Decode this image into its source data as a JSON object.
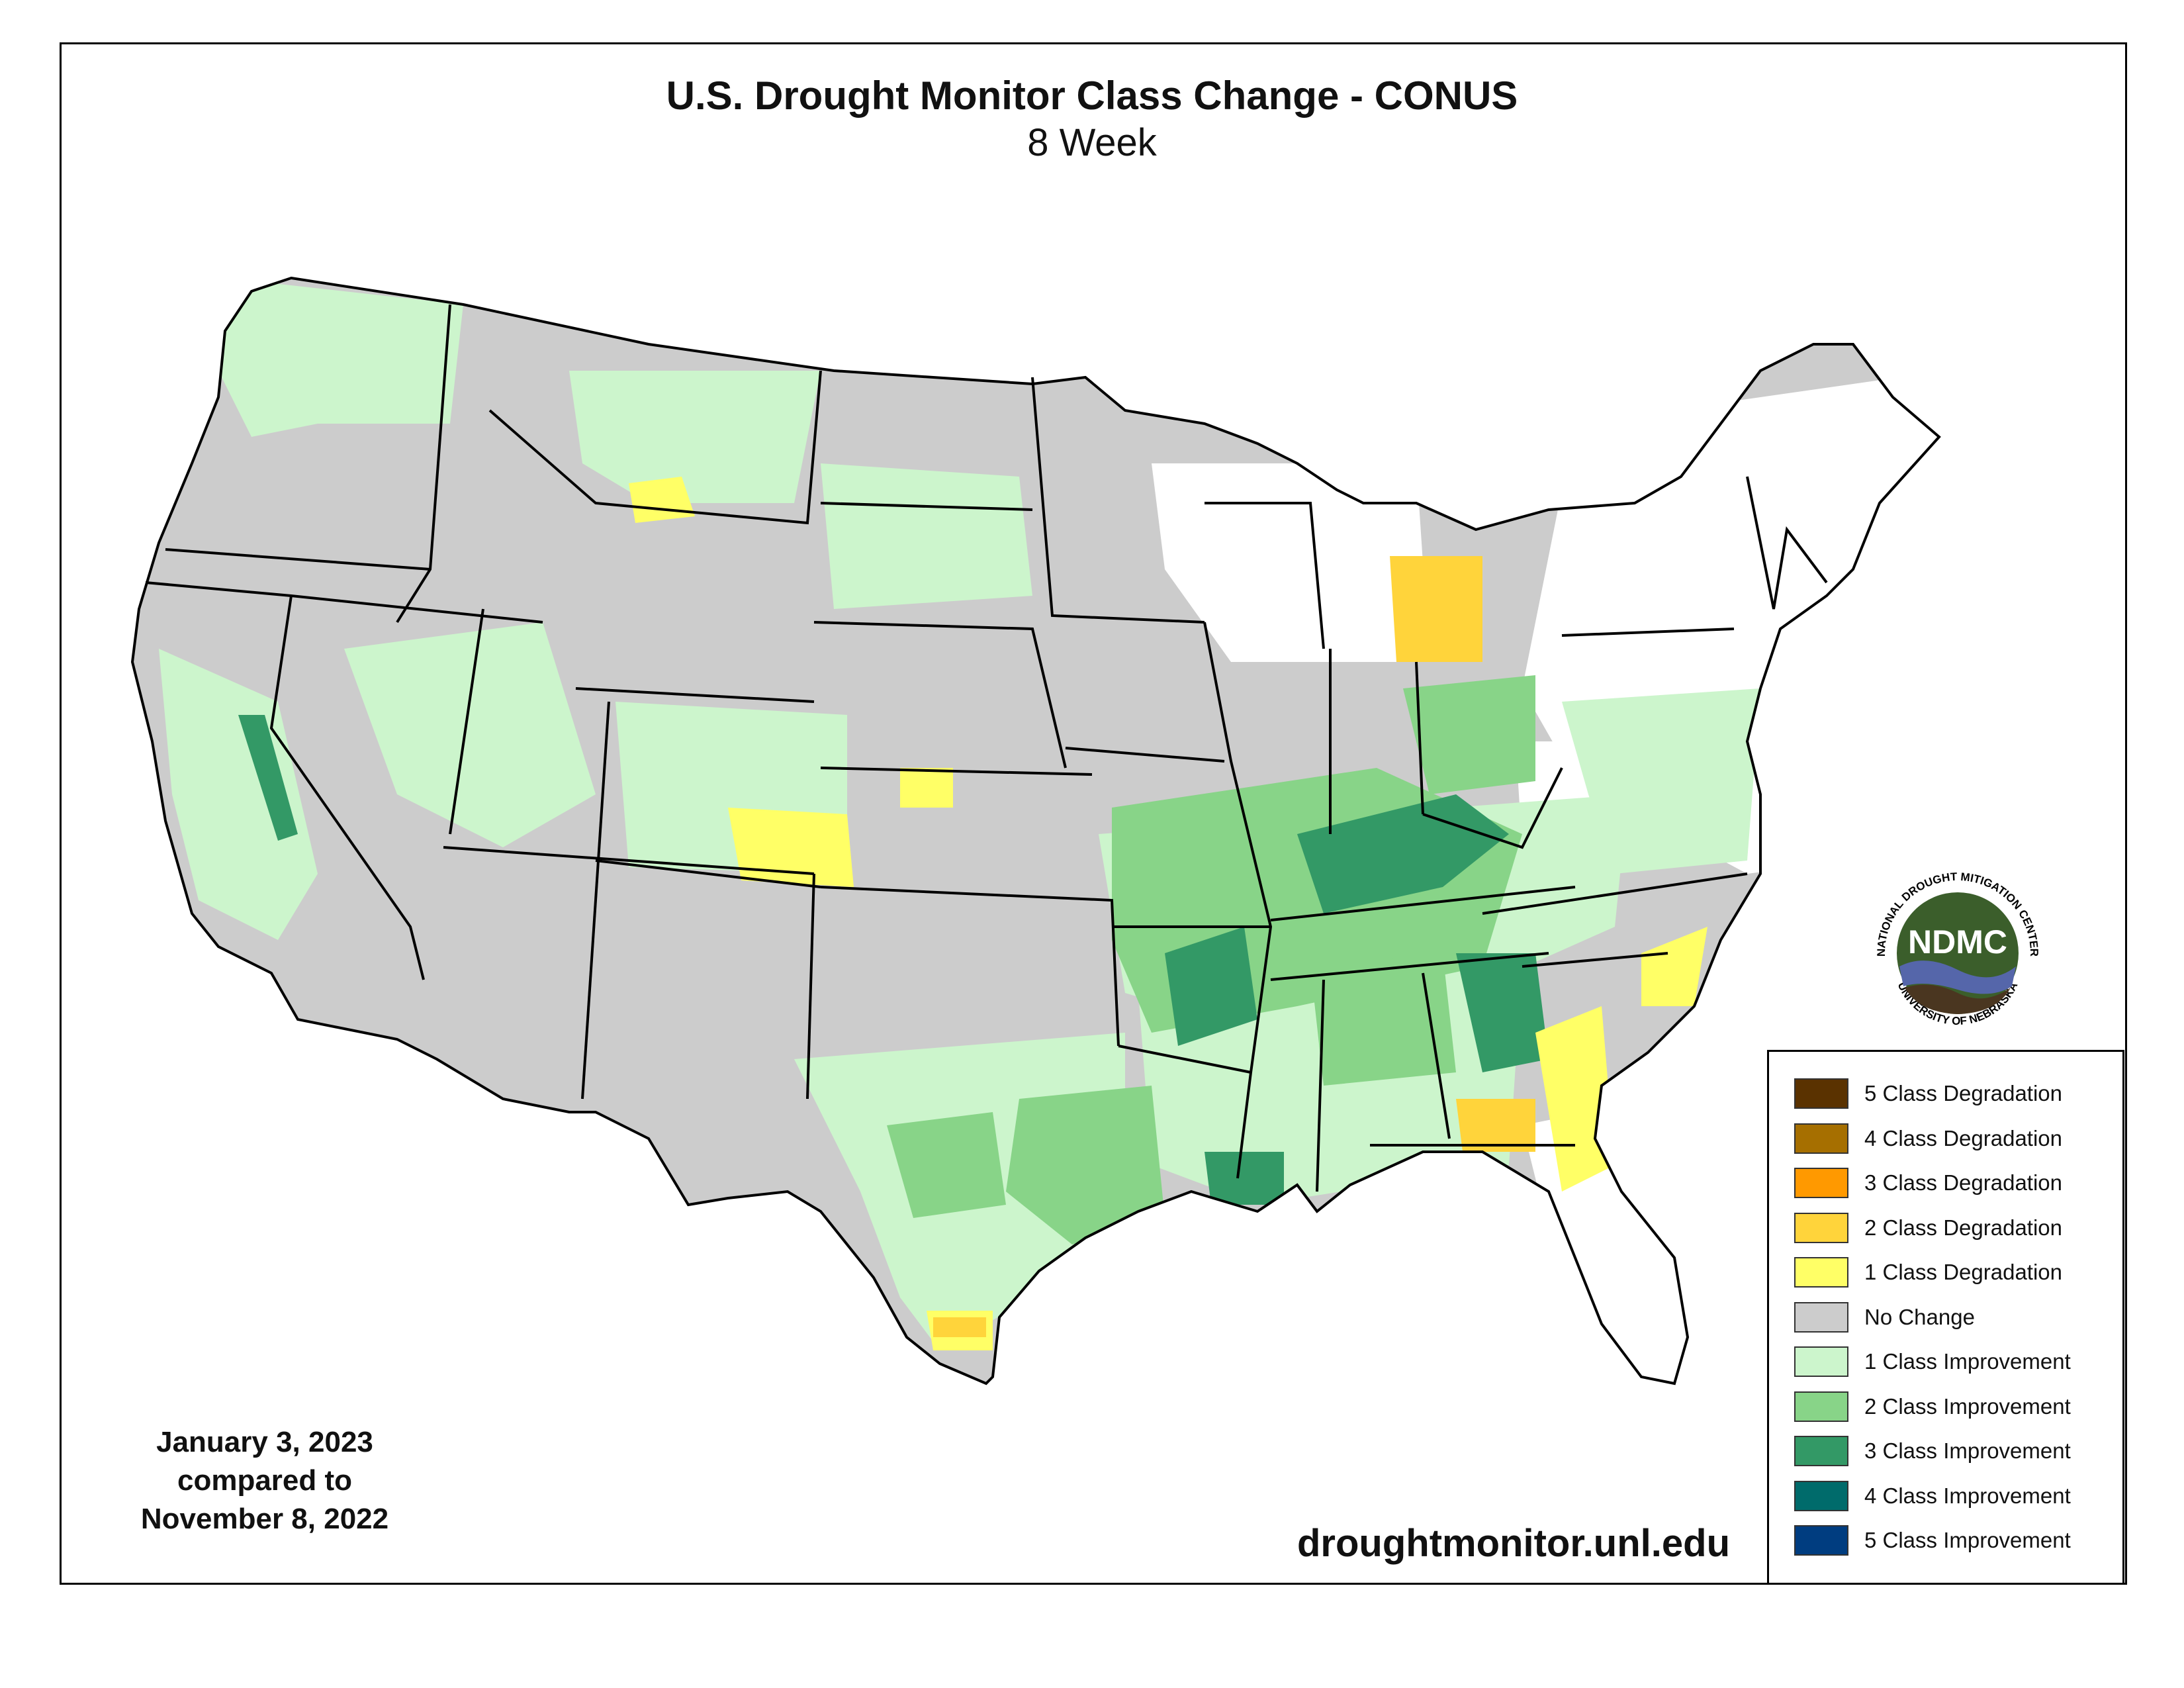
{
  "title": "U.S. Drought Monitor Class Change - CONUS",
  "subtitle": "8 Week",
  "date_block": {
    "line1": "January 3, 2023",
    "line2": "compared to",
    "line3": "November 8, 2022"
  },
  "website": "droughtmonitor.unl.edu",
  "logo": {
    "abbrev": "NDMC",
    "ring_top": "NATIONAL DROUGHT MITIGATION CENTER",
    "ring_bottom": "UNIVERSITY OF NEBRASKA"
  },
  "legend": [
    {
      "label": "5 Class Degradation",
      "color": "#5a3200"
    },
    {
      "label": "4 Class Degradation",
      "color": "#a66f00"
    },
    {
      "label": "3 Class Degradation",
      "color": "#ff9900"
    },
    {
      "label": "2 Class Degradation",
      "color": "#ffd43b"
    },
    {
      "label": "1 Class Degradation",
      "color": "#ffff66"
    },
    {
      "label": "No Change",
      "color": "#cccccc"
    },
    {
      "label": "1 Class Improvement",
      "color": "#ccf5cc"
    },
    {
      "label": "2 Class Improvement",
      "color": "#88d488"
    },
    {
      "label": "3 Class Improvement",
      "color": "#339966"
    },
    {
      "label": "4 Class Improvement",
      "color": "#006b6b"
    },
    {
      "label": "5 Class Improvement",
      "color": "#003d80"
    }
  ],
  "colors": {
    "no_change": "#cccccc",
    "improve1": "#ccf5cc",
    "improve2": "#88d488",
    "improve3": "#339966",
    "degrade1": "#ffff66",
    "degrade2": "#ffd43b",
    "water": "#ffffff",
    "border": "#000000",
    "logo_green": "#3b5e2b",
    "logo_blue": "#5566aa",
    "logo_brown": "#4a3620"
  }
}
